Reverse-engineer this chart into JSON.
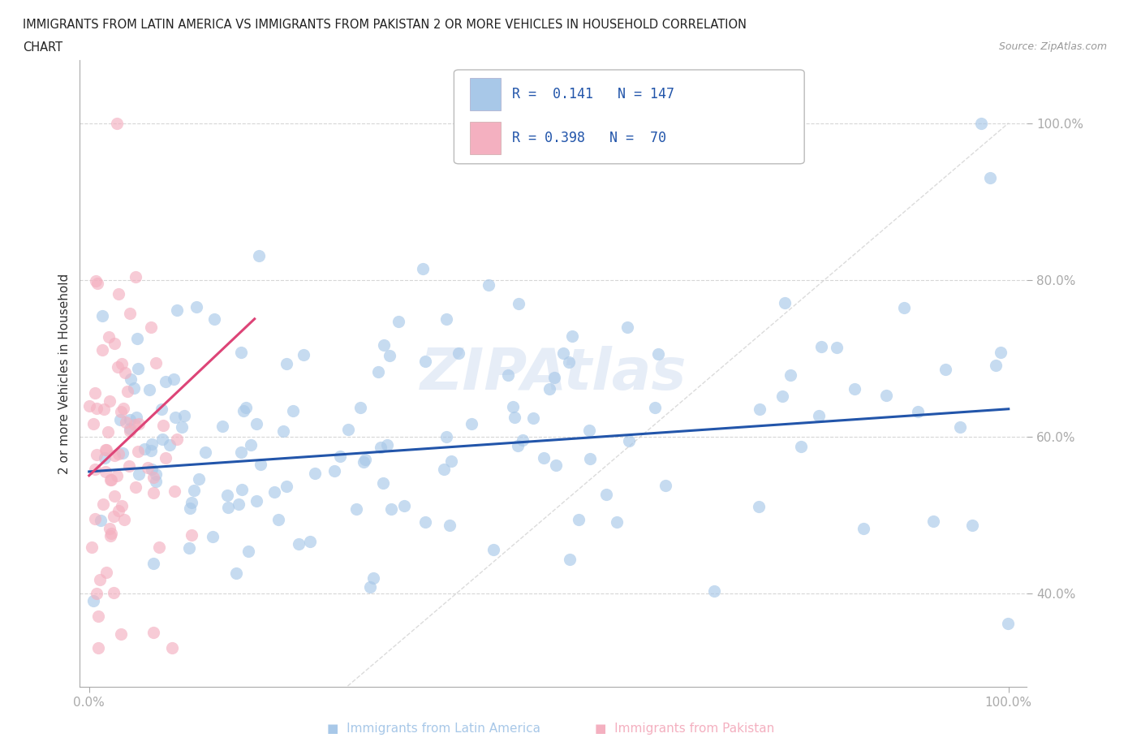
{
  "title_line1": "IMMIGRANTS FROM LATIN AMERICA VS IMMIGRANTS FROM PAKISTAN 2 OR MORE VEHICLES IN HOUSEHOLD CORRELATION",
  "title_line2": "CHART",
  "source": "Source: ZipAtlas.com",
  "ylabel": "2 or more Vehicles in Household",
  "watermark": "ZIPAtlas",
  "legend_text1": "R =  0.141   N = 147",
  "legend_text2": "R = 0.398   N =  70",
  "color_blue": "#a8c8e8",
  "color_pink": "#f4b0c0",
  "line_color_blue": "#2255aa",
  "line_color_pink": "#dd4477",
  "background_color": "#ffffff",
  "scatter_alpha": 0.65,
  "scatter_size": 120,
  "ytick_color": "#4477cc",
  "xtick_color": "#333333",
  "ylabel_color": "#333333",
  "grid_color": "#cccccc",
  "diagonal_color": "#cccccc"
}
